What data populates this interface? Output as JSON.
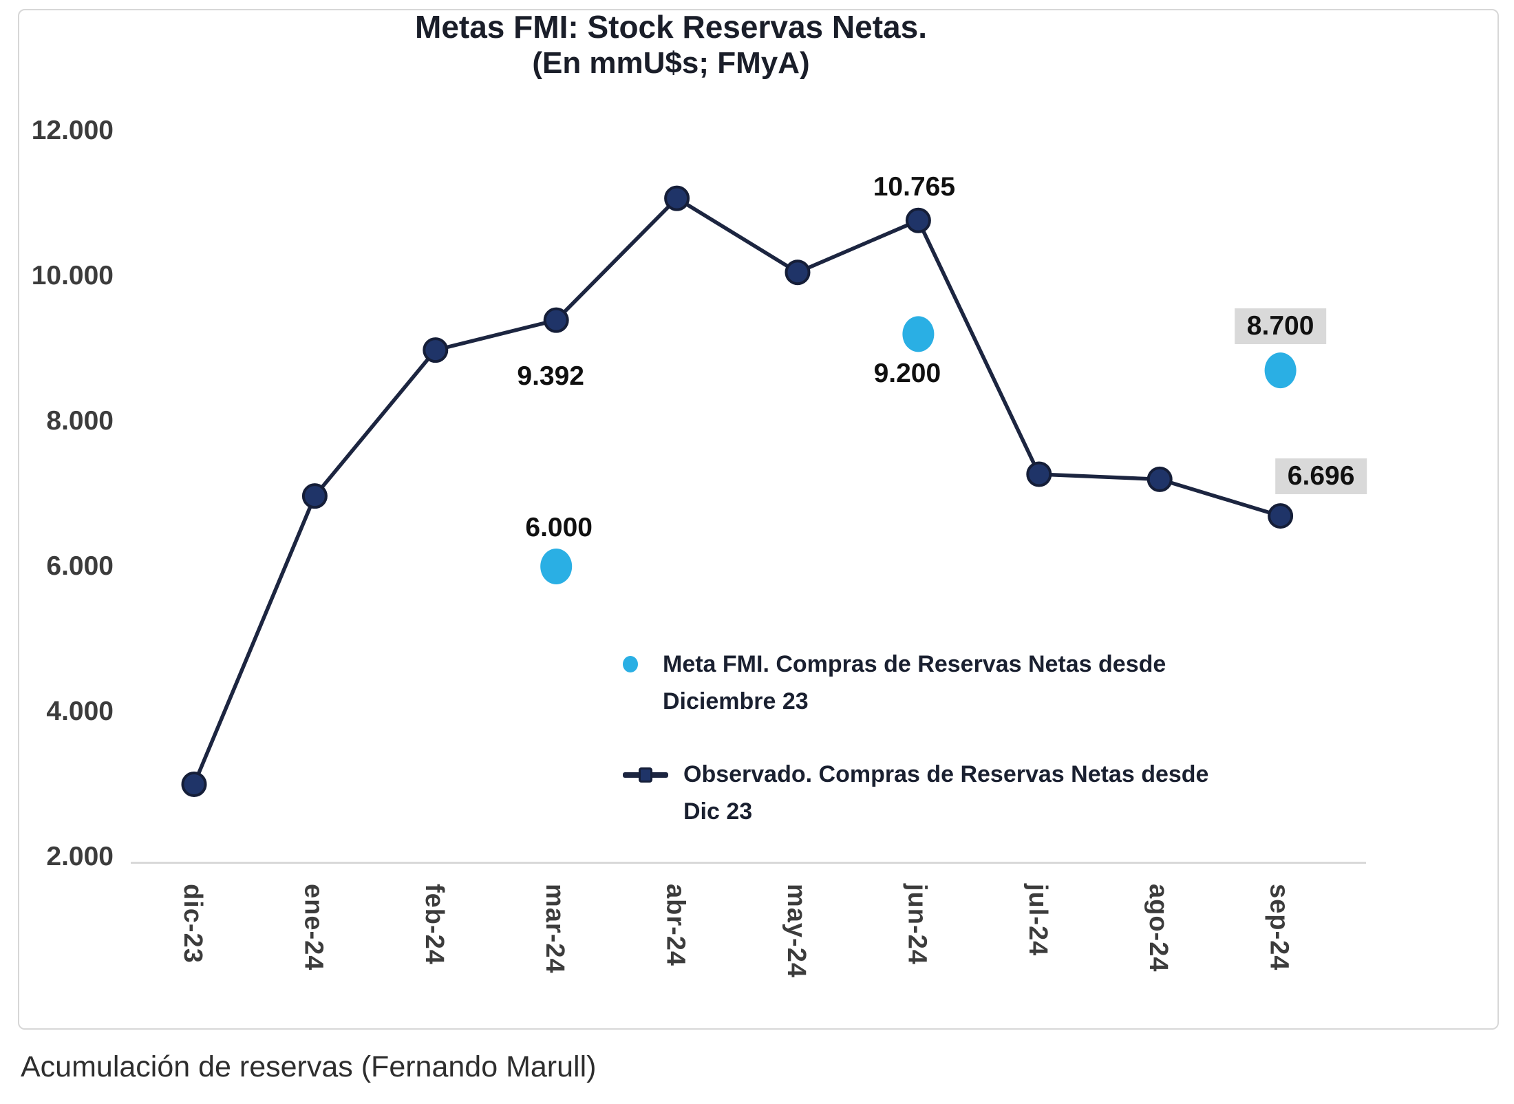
{
  "title": {
    "line1": "Metas FMI: Stock Reservas Netas.",
    "line2": "(En mmU$s; FMyA)"
  },
  "caption": "Acumulación de reservas (Fernando Marull)",
  "chart_data": {
    "type": "line",
    "title": "Metas FMI: Stock Reservas Netas.",
    "subtitle": "(En mmU$s; FMyA)",
    "categories": [
      "dic-23",
      "ene-24",
      "feb-24",
      "mar-24",
      "abr-24",
      "may-24",
      "jun-24",
      "jul-24",
      "ago-24",
      "sep-24"
    ],
    "y_tick_labels": [
      "12.000",
      "10.000",
      "8.000",
      "6.000",
      "4.000",
      "2.000"
    ],
    "ylim": [
      2000,
      12000
    ],
    "grid": false,
    "legend_position": "inside-center-right",
    "series": [
      {
        "name": "Observado. Compras de Reservas Netas desde Dic 23",
        "style": "line-with-markers",
        "line_color": "#1c2540",
        "marker_color": "#1f3468",
        "values": [
          3000,
          6970,
          8980,
          9392,
          11070,
          10050,
          10765,
          7270,
          7200,
          6696
        ]
      },
      {
        "name": "Meta FMI. Compras de Reservas Netas desde Diciembre 23",
        "style": "markers-only",
        "marker_color": "#2aafe4",
        "points": [
          {
            "category": "mar-24",
            "value": 6000
          },
          {
            "category": "jun-24",
            "value": 9200
          },
          {
            "category": "sep-24",
            "value": 8700
          }
        ]
      }
    ],
    "annotations": [
      {
        "text": "9.392",
        "series": 0,
        "category": "mar-24",
        "placement": "below",
        "boxed": false
      },
      {
        "text": "6.000",
        "series": 1,
        "category": "mar-24",
        "placement": "above",
        "boxed": false
      },
      {
        "text": "10.765",
        "series": 0,
        "category": "jun-24",
        "placement": "above",
        "boxed": false
      },
      {
        "text": "9.200",
        "series": 1,
        "category": "jun-24",
        "placement": "below",
        "boxed": false
      },
      {
        "text": "8.700",
        "series": 1,
        "category": "sep-24",
        "placement": "above",
        "boxed": true
      },
      {
        "text": "6.696",
        "series": 0,
        "category": "sep-24",
        "placement": "above-right",
        "boxed": true
      }
    ],
    "legend": [
      {
        "marker": "dot",
        "color": "#2aafe4",
        "label_line1": "Meta FMI. Compras de Reservas Netas desde",
        "label_line2": "Diciembre 23"
      },
      {
        "marker": "line-square",
        "color": "#1c2540",
        "label_line1": "Observado. Compras de Reservas Netas desde",
        "label_line2": "Dic 23"
      }
    ]
  },
  "colors": {
    "line": "#1c2540",
    "marker": "#1f3468",
    "marker_stroke": "#151e38",
    "meta_marker": "#2aafe4",
    "annotation_box": "#d9d9d9",
    "axis": "#d9d9d9",
    "frame_border": "#d7d7d7"
  }
}
